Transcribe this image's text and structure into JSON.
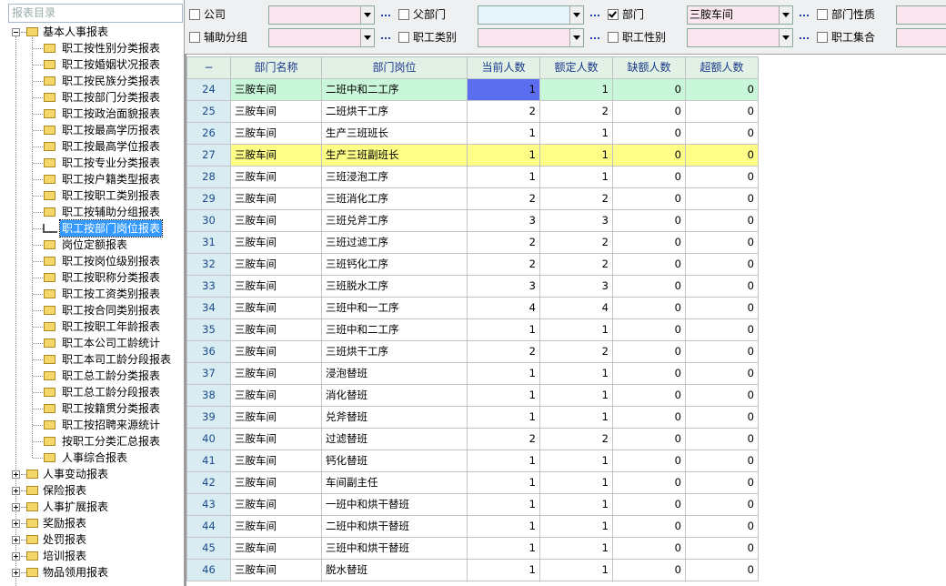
{
  "sidebar": {
    "title": "报表目录",
    "tree": [
      {
        "label": "基本人事报表",
        "expanded": true,
        "selected_child": 11,
        "children": [
          "职工按性别分类报表",
          "职工按婚姻状况报表",
          "职工按民族分类报表",
          "职工按部门分类报表",
          "职工按政治面貌报表",
          "职工按最高学历报表",
          "职工按最高学位报表",
          "职工按专业分类报表",
          "职工按户籍类型报表",
          "职工按职工类别报表",
          "职工按辅助分组报表",
          "职工按部门岗位报表",
          "岗位定额报表",
          "职工按岗位级别报表",
          "职工按职称分类报表",
          "职工按工资类别报表",
          "职工按合同类别报表",
          "职工按职工年龄报表",
          "职工本公司工龄统计",
          "职工本司工龄分段报表",
          "职工总工龄分类报表",
          "职工总工龄分段报表",
          "职工按籍贯分类报表",
          "职工按招聘来源统计",
          "按职工分类汇总报表",
          "人事综合报表"
        ]
      },
      {
        "label": "人事变动报表",
        "expanded": false
      },
      {
        "label": "保险报表",
        "expanded": false
      },
      {
        "label": "人事扩展报表",
        "expanded": false
      },
      {
        "label": "奖励报表",
        "expanded": false
      },
      {
        "label": "处罚报表",
        "expanded": false
      },
      {
        "label": "培训报表",
        "expanded": false
      },
      {
        "label": "物品领用报表",
        "expanded": false
      }
    ]
  },
  "filters": [
    {
      "label": "公司",
      "checked": false,
      "color": "#fbe6ef"
    },
    {
      "label": "父部门",
      "checked": false,
      "color": "#e8f4fb"
    },
    {
      "label": "部门",
      "checked": true,
      "color": "#fbe6ef",
      "value": "三胺车间"
    },
    {
      "label": "部门性质",
      "checked": false,
      "color": "#fbe6ef"
    },
    {
      "label": "辅助分组",
      "checked": false,
      "color": "#fbe6ef"
    },
    {
      "label": "职工类别",
      "checked": false,
      "color": "#fbe6ef"
    },
    {
      "label": "职工性别",
      "checked": false,
      "color": "#fbe6ef"
    },
    {
      "label": "职工集合",
      "checked": false,
      "color": "#fbe6ef"
    }
  ],
  "table": {
    "columns": [
      "−",
      "部门名称",
      "部门岗位",
      "当前人数",
      "额定人数",
      "缺额人数",
      "超额人数"
    ],
    "current_row": 0,
    "highlight_row": 3,
    "rows": [
      [
        24,
        "三胺车间",
        "二班中和二工序",
        1,
        1,
        0,
        0
      ],
      [
        25,
        "三胺车间",
        "二班烘干工序",
        2,
        2,
        0,
        0
      ],
      [
        26,
        "三胺车间",
        "生产三班班长",
        1,
        1,
        0,
        0
      ],
      [
        27,
        "三胺车间",
        "生产三班副班长",
        1,
        1,
        0,
        0
      ],
      [
        28,
        "三胺车间",
        "三班浸泡工序",
        1,
        1,
        0,
        0
      ],
      [
        29,
        "三胺车间",
        "三班消化工序",
        2,
        2,
        0,
        0
      ],
      [
        30,
        "三胺车间",
        "三班兑斧工序",
        3,
        3,
        0,
        0
      ],
      [
        31,
        "三胺车间",
        "三班过滤工序",
        2,
        2,
        0,
        0
      ],
      [
        32,
        "三胺车间",
        "三班钙化工序",
        2,
        2,
        0,
        0
      ],
      [
        33,
        "三胺车间",
        "三班脱水工序",
        3,
        3,
        0,
        0
      ],
      [
        34,
        "三胺车间",
        "三班中和一工序",
        4,
        4,
        0,
        0
      ],
      [
        35,
        "三胺车间",
        "三班中和二工序",
        1,
        1,
        0,
        0
      ],
      [
        36,
        "三胺车间",
        "三班烘干工序",
        2,
        2,
        0,
        0
      ],
      [
        37,
        "三胺车间",
        "浸泡替班",
        1,
        1,
        0,
        0
      ],
      [
        38,
        "三胺车间",
        "消化替班",
        1,
        1,
        0,
        0
      ],
      [
        39,
        "三胺车间",
        "兑斧替班",
        1,
        1,
        0,
        0
      ],
      [
        40,
        "三胺车间",
        "过滤替班",
        2,
        2,
        0,
        0
      ],
      [
        41,
        "三胺车间",
        "钙化替班",
        1,
        1,
        0,
        0
      ],
      [
        42,
        "三胺车间",
        "车间副主任",
        1,
        1,
        0,
        0
      ],
      [
        43,
        "三胺车间",
        "一班中和烘干替班",
        1,
        1,
        0,
        0
      ],
      [
        44,
        "三胺车间",
        "二班中和烘干替班",
        1,
        1,
        0,
        0
      ],
      [
        45,
        "三胺车间",
        "三班中和烘干替班",
        1,
        1,
        0,
        0
      ],
      [
        46,
        "三胺车间",
        "脱水替班",
        1,
        1,
        0,
        0
      ]
    ]
  }
}
